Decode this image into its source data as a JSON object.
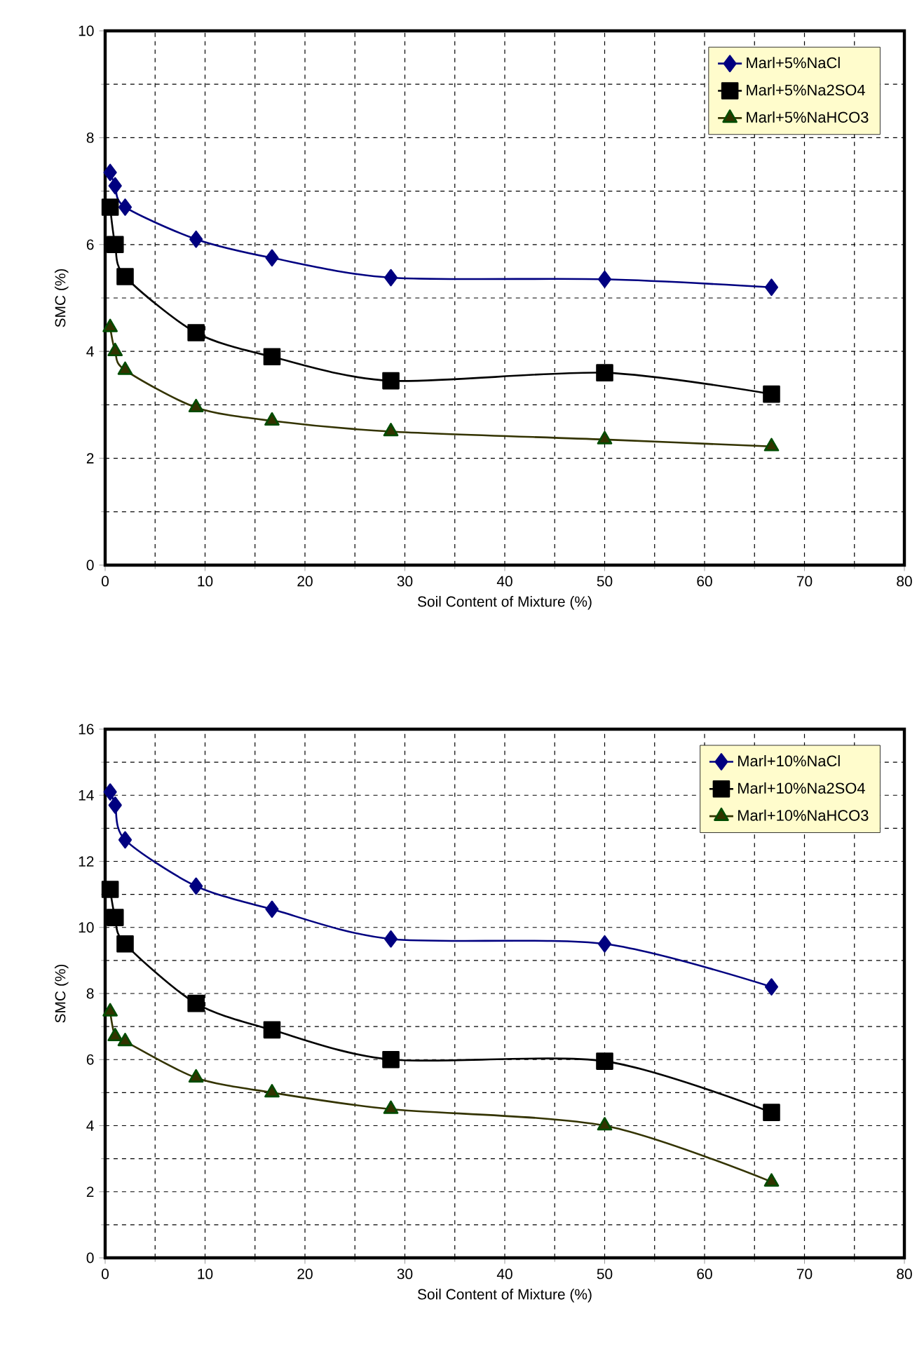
{
  "chart_data": [
    {
      "type": "line",
      "xlabel": "Soil Content of Mixture (%)",
      "ylabel": "SMC (%)",
      "xlim": [
        0,
        80
      ],
      "xticks": [
        0,
        10,
        20,
        30,
        40,
        50,
        60,
        70,
        80
      ],
      "ylim": [
        0,
        10
      ],
      "yticks": [
        0,
        2,
        4,
        6,
        8,
        10
      ],
      "grid": true,
      "legend": "top right",
      "line_style": "solid",
      "x": [
        0.5,
        1,
        2,
        9.1,
        16.7,
        28.6,
        50,
        66.7
      ],
      "series": [
        {
          "name": "Marl+5%NaCl",
          "color": "#000080",
          "marker": "diamond",
          "values": [
            7.35,
            7.1,
            6.7,
            6.1,
            5.75,
            5.38,
            5.35,
            5.2
          ]
        },
        {
          "name": "Marl+5%Na2SO4",
          "color": "#000000",
          "marker": "square",
          "values": [
            6.7,
            6.0,
            5.4,
            4.35,
            3.9,
            3.45,
            3.6,
            3.2
          ]
        },
        {
          "name": "Marl+5%NaHCO3",
          "color": "#333300",
          "marker": "triangle",
          "values": [
            4.45,
            4.0,
            3.65,
            2.95,
            2.7,
            2.5,
            2.35,
            2.22
          ]
        }
      ]
    },
    {
      "type": "line",
      "xlabel": "Soil Content of Mixture (%)",
      "ylabel": "SMC (%)",
      "xlim": [
        0,
        80
      ],
      "xticks": [
        0,
        10,
        20,
        30,
        40,
        50,
        60,
        70,
        80
      ],
      "ylim": [
        0,
        16
      ],
      "yticks": [
        0,
        2,
        4,
        6,
        8,
        10,
        12,
        14,
        16
      ],
      "grid": true,
      "legend": "top right",
      "line_style": "solid",
      "x": [
        0.5,
        1,
        2,
        9.1,
        16.7,
        28.6,
        50,
        66.7
      ],
      "series": [
        {
          "name": "Marl+10%NaCl",
          "color": "#000080",
          "marker": "diamond",
          "values": [
            14.1,
            13.7,
            12.65,
            11.25,
            10.55,
            9.65,
            9.5,
            8.2
          ]
        },
        {
          "name": "Marl+10%Na2SO4",
          "color": "#000000",
          "marker": "square",
          "values": [
            11.15,
            10.3,
            9.5,
            7.7,
            6.9,
            6.0,
            5.95,
            4.4
          ]
        },
        {
          "name": "Marl+10%NaHCO3",
          "color": "#333300",
          "marker": "triangle",
          "values": [
            7.45,
            6.7,
            6.55,
            5.45,
            5.0,
            4.5,
            4.0,
            2.3
          ]
        }
      ]
    }
  ]
}
